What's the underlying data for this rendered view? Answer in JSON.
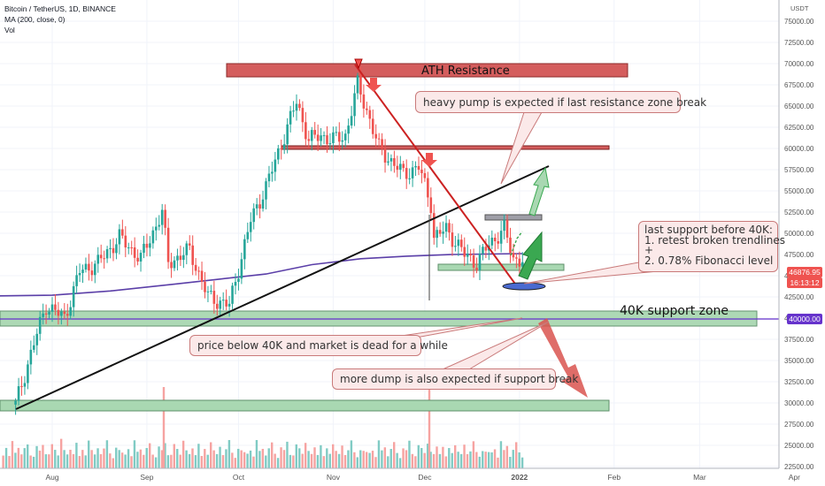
{
  "header": {
    "symbol": "Bitcoin / TetherUS, 1D, BINANCE",
    "indicator": "MA (200, close, 0)",
    "volume": "Vol"
  },
  "chart_data": {
    "type": "candlestick",
    "currency": "USDT",
    "x_ticks": [
      "Aug",
      "Sep",
      "Oct",
      "Nov",
      "Dec",
      "2022",
      "Feb",
      "Mar",
      "Apr"
    ],
    "y_ticks": [
      "75000.00",
      "72500.00",
      "70000.00",
      "67500.00",
      "65000.00",
      "62500.00",
      "60000.00",
      "57500.00",
      "55000.00",
      "52500.00",
      "50000.00",
      "47500.00",
      "45000.00",
      "42500.00",
      "40000.00",
      "37500.00",
      "35000.00",
      "32500.00",
      "30000.00",
      "27500.00",
      "25000.00",
      "22500.00"
    ],
    "ylim": [
      22500,
      77500
    ],
    "last_price": "46876.95",
    "countdown": "16:13:12",
    "key_level_label": "40000.00",
    "close_path": [
      [
        "2021-07-20",
        29800
      ],
      [
        "2021-07-26",
        37000
      ],
      [
        "2021-07-30",
        41500
      ],
      [
        "2021-08-05",
        40000
      ],
      [
        "2021-08-10",
        45500
      ],
      [
        "2021-08-16",
        46500
      ],
      [
        "2021-08-23",
        49500
      ],
      [
        "2021-08-30",
        47000
      ],
      [
        "2021-09-06",
        52500
      ],
      [
        "2021-09-08",
        46500
      ],
      [
        "2021-09-15",
        48000
      ],
      [
        "2021-09-21",
        42500
      ],
      [
        "2021-09-28",
        41500
      ],
      [
        "2021-10-05",
        51500
      ],
      [
        "2021-10-10",
        55500
      ],
      [
        "2021-10-16",
        61500
      ],
      [
        "2021-10-20",
        65500
      ],
      [
        "2021-10-24",
        61000
      ],
      [
        "2021-10-28",
        61500
      ],
      [
        "2021-11-01",
        61000
      ],
      [
        "2021-11-05",
        61500
      ],
      [
        "2021-11-09",
        67500
      ],
      [
        "2021-11-12",
        64500
      ],
      [
        "2021-11-16",
        60000
      ],
      [
        "2021-11-20",
        58500
      ],
      [
        "2021-11-24",
        57000
      ],
      [
        "2021-11-29",
        57800
      ],
      [
        "2021-12-03",
        53500
      ],
      [
        "2021-12-04",
        49500
      ],
      [
        "2021-12-08",
        50500
      ],
      [
        "2021-12-14",
        47500
      ],
      [
        "2021-12-18",
        46500
      ],
      [
        "2021-12-22",
        48700
      ],
      [
        "2021-12-27",
        50500
      ],
      [
        "2021-12-30",
        47000
      ],
      [
        "2022-01-02",
        46877
      ]
    ],
    "ma200": [
      [
        "2021-07-10",
        42600
      ],
      [
        "2021-08-01",
        42700
      ],
      [
        "2021-08-20",
        43200
      ],
      [
        "2021-09-10",
        44000
      ],
      [
        "2021-09-25",
        44600
      ],
      [
        "2021-10-10",
        45200
      ],
      [
        "2021-10-25",
        46300
      ],
      [
        "2021-11-10",
        47000
      ],
      [
        "2021-11-25",
        47300
      ],
      [
        "2021-12-10",
        47500
      ],
      [
        "2022-01-02",
        47600
      ]
    ],
    "volume_profile": [
      0.3,
      0.45,
      0.2,
      0.6,
      0.35,
      0.5,
      0.25,
      0.4,
      0.55,
      0.3,
      0.2,
      0.45,
      0.35,
      0.6,
      0.3,
      0.25,
      0.5,
      0.4,
      0.3,
      0.7,
      0.35,
      0.25,
      0.45,
      0.3,
      0.55,
      0.2,
      0.4,
      0.3,
      0.65,
      0.35,
      0.25,
      0.5,
      0.3,
      0.4,
      0.6,
      0.3,
      0.2,
      0.45,
      0.35,
      0.3
    ]
  },
  "annotations": {
    "ath_label": "ATH Resistance",
    "support_zone_label": "40K support zone",
    "note_pump": "heavy pump is expected if last resistance zone break",
    "note_support": "last support before 40K:\n1. retest broken trendlines\n+\n2. 0.78% Fibonacci level",
    "note_dead": "price below 40K and market is dead for a while",
    "note_dump": "more dump is also expected if support break"
  },
  "colors": {
    "bull": "#26a69a",
    "bear": "#ef5350",
    "ma": "#5b3fa8",
    "zone_red": "#d45d5d",
    "zone_green": "#a9d8b2",
    "accent_blue": "#2962ff",
    "key_level": "#6633cc",
    "arrow_green": "#2e9e45",
    "arrow_red": "#d9534f"
  }
}
